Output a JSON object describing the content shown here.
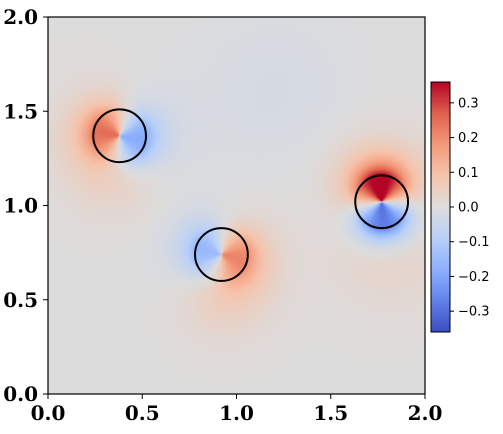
{
  "chart_data": {
    "type": "heatmap",
    "title": "",
    "xlabel": "",
    "ylabel": "",
    "xlim": [
      0.0,
      2.0
    ],
    "ylim": [
      0.0,
      2.0
    ],
    "x_ticks": [
      "0.0",
      "0.5",
      "1.0",
      "1.5",
      "2.0"
    ],
    "x_tick_values": [
      0.0,
      0.5,
      1.0,
      1.5,
      2.0
    ],
    "y_ticks": [
      "0.0",
      "0.5",
      "1.0",
      "1.5",
      "2.0"
    ],
    "y_tick_values": [
      0.0,
      0.5,
      1.0,
      1.5,
      2.0
    ],
    "colormap": "coolwarm",
    "colorbar": {
      "vmin": -0.36,
      "vmax": 0.36,
      "ticks": [
        "0.3",
        "0.2",
        "0.1",
        "0.0",
        "−0.1",
        "−0.2",
        "−0.3"
      ],
      "tick_values": [
        0.3,
        0.2,
        0.1,
        0.0,
        -0.1,
        -0.2,
        -0.3
      ],
      "placement": "right"
    },
    "circles": [
      {
        "cx": 0.38,
        "cy": 1.37,
        "r": 0.14
      },
      {
        "cx": 0.92,
        "cy": 0.74,
        "r": 0.14
      },
      {
        "cx": 1.77,
        "cy": 1.02,
        "r": 0.14
      }
    ],
    "field_sources": [
      {
        "x": 0.38,
        "y": 1.37,
        "dipole_angle_deg": 165,
        "strength": 0.22
      },
      {
        "x": 0.92,
        "y": 0.74,
        "dipole_angle_deg": -10,
        "strength": 0.18
      },
      {
        "x": 1.77,
        "y": 1.02,
        "dipole_angle_deg": 95,
        "strength": 0.36
      }
    ]
  },
  "colors": {
    "cool": "#3b4cc0",
    "neutral": "#dddddd",
    "warm": "#b40426",
    "circle_stroke": "#000000"
  }
}
